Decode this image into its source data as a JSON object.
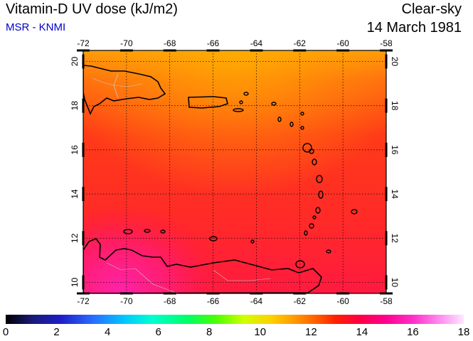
{
  "header": {
    "title": "Vitamin-D UV dose (kJ/m2)",
    "source": "MSR - KNMI",
    "condition": "Clear-sky",
    "date": "14 March 1981"
  },
  "map": {
    "lon_ticks": [
      "-72",
      "-70",
      "-68",
      "-66",
      "-64",
      "-62",
      "-60",
      "-58"
    ],
    "lat_ticks": [
      "10",
      "12",
      "14",
      "16",
      "18",
      "20"
    ],
    "lon_range": [
      -72,
      -58
    ],
    "lat_range": [
      9.5,
      20.5
    ],
    "grid": "dotted"
  },
  "colorbar": {
    "labels": [
      "0",
      "2",
      "4",
      "6",
      "8",
      "10",
      "12",
      "14",
      "16",
      "18"
    ],
    "range": [
      0,
      18
    ]
  },
  "colors": {
    "title": "#000000",
    "source": "#0000cc",
    "coastline": "#000000",
    "border": "#c8c8c8"
  }
}
